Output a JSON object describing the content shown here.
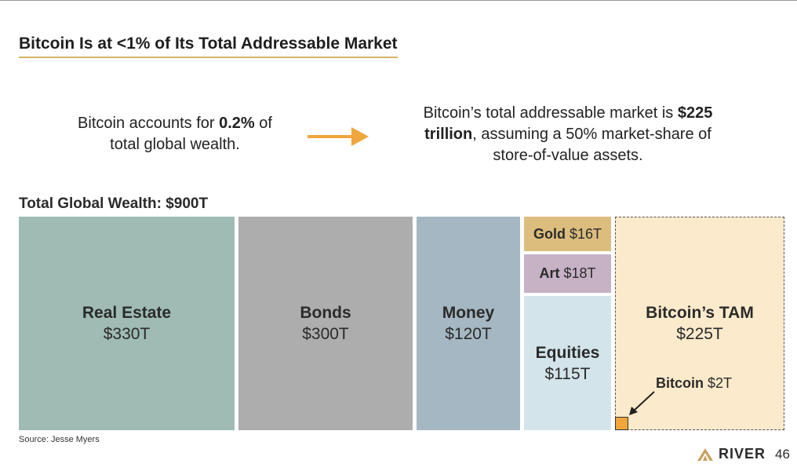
{
  "title": "Bitcoin Is at <1% of Its Total Addressable Market",
  "stat_left": {
    "line1_pre": "Bitcoin accounts for ",
    "line1_bold": "0.2%",
    "line1_post": " of",
    "line2": "total global wealth."
  },
  "stat_right": {
    "pre": "Bitcoin’s total addressable market is ",
    "bold1": "$225",
    "bold2": "trillion",
    "post": ", assuming a 50% market-share of",
    "line3": "store-of-value assets."
  },
  "colors": {
    "accent_arrow": "#f0a63c",
    "real_estate": "#9fbbb3",
    "bonds": "#adadad",
    "money": "#a5b7c2",
    "gold": "#dcbd7e",
    "art": "#c6b1c5",
    "equities": "#d3e4ea",
    "tam": "#fbeacb",
    "bitcoin": "#f0a63c"
  },
  "chart_data": {
    "type": "treemap",
    "title": "Total Global Wealth: $900T",
    "unit": "trillion USD",
    "total": 900,
    "items": [
      {
        "name": "Real Estate",
        "label": "$330T",
        "value": 330
      },
      {
        "name": "Bonds",
        "label": "$300T",
        "value": 300
      },
      {
        "name": "Money",
        "label": "$120T",
        "value": 120
      },
      {
        "name": "Gold",
        "label": "$16T",
        "value": 16
      },
      {
        "name": "Art",
        "label": "$18T",
        "value": 18
      },
      {
        "name": "Equities",
        "label": "$115T",
        "value": 115
      }
    ],
    "tam": {
      "name": "Bitcoin’s TAM",
      "label": "$225T",
      "value": 225
    },
    "bitcoin": {
      "name": "Bitcoin",
      "label": "$2T",
      "value": 2
    }
  },
  "source": "Source: Jesse Myers",
  "brand": {
    "name": "RIVER",
    "page": "46"
  }
}
